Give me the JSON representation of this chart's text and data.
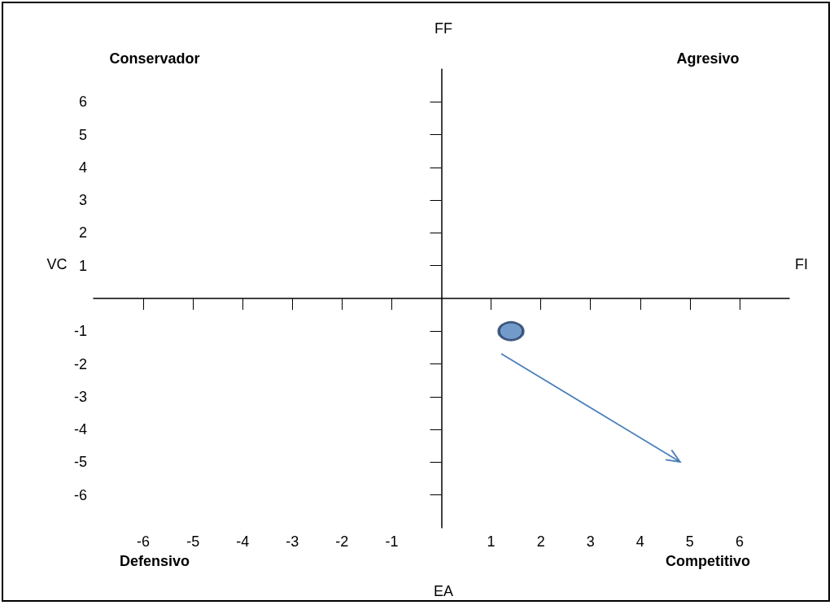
{
  "chart_data": {
    "type": "scatter",
    "x": [
      1.4
    ],
    "values": [
      -1
    ],
    "color": "#4f81bd",
    "marker": "circle",
    "xlim": [
      -7,
      7
    ],
    "ylim": [
      -7,
      7
    ],
    "xticks": [
      -6,
      -5,
      -4,
      -3,
      -2,
      -1,
      1,
      2,
      3,
      4,
      5,
      6
    ],
    "yticks": [
      -6,
      -5,
      -4,
      -3,
      -2,
      -1,
      1,
      2,
      3,
      4,
      5,
      6
    ],
    "grid": false,
    "annotations": [
      "Conservador",
      "Agresivo",
      "Defensivo",
      "Competitivo",
      "FF",
      "EA",
      "VC",
      "FI"
    ]
  }
}
